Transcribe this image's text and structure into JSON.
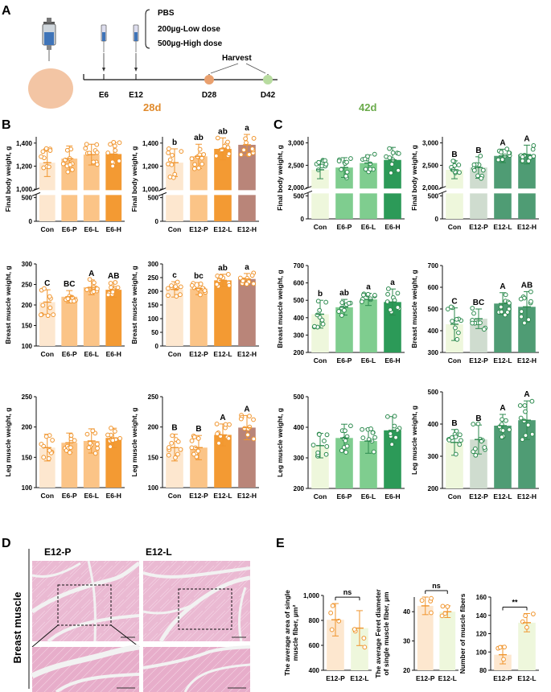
{
  "panel_labels": {
    "A": "A",
    "B": "B",
    "C": "C",
    "D": "D",
    "E": "E"
  },
  "timeline": {
    "treatments": [
      "PBS",
      "200µg-Low dose",
      "500µg-High dose"
    ],
    "ticks": [
      "E6",
      "E12",
      "D28",
      "D42"
    ],
    "harvest_label": "Harvest",
    "day28_label": "28d",
    "day42_label": "42d"
  },
  "histology": {
    "col1": "E12-P",
    "col2": "E12-L",
    "row_label": "Breast muscle"
  },
  "colors": {
    "orange_light": "#fde7cf",
    "orange_mid": "#fbc487",
    "orange_dark": "#f39a33",
    "brown": "#b98579",
    "green_pale": "#eef7dc",
    "green_mid": "#7fcd8f",
    "green_dark": "#2c9a58",
    "gray_green": "#cfdccf",
    "teal_green": "#4f9c74"
  },
  "chart_data": [
    {
      "id": "B1",
      "type": "bar",
      "ylabel": "Final body weight, g",
      "categories": [
        "Con",
        "E6-P",
        "E6-L",
        "E6-H"
      ],
      "values": [
        1230,
        1265,
        1300,
        1305
      ],
      "errors": [
        120,
        110,
        90,
        100
      ],
      "letters": [
        "",
        "",
        "",
        ""
      ],
      "ticks": [
        "1,400",
        "1,200",
        "1,000",
        "500",
        "0"
      ],
      "break": true,
      "palette": "orange"
    },
    {
      "id": "B2",
      "type": "bar",
      "ylabel": "Final body weight, g",
      "categories": [
        "Con",
        "E12-P",
        "E12-L",
        "E12-H"
      ],
      "values": [
        1230,
        1285,
        1350,
        1385
      ],
      "errors": [
        120,
        105,
        95,
        90
      ],
      "letters": [
        "b",
        "ab",
        "ab",
        "a"
      ],
      "ticks": [
        "1,400",
        "1,200",
        "1,000",
        "500",
        "0"
      ],
      "break": true,
      "palette": "orange2"
    },
    {
      "id": "C1",
      "type": "bar",
      "ylabel": "Final body weight, g",
      "categories": [
        "Con",
        "E6-P",
        "E6-L",
        "E6-H"
      ],
      "values": [
        2400,
        2450,
        2550,
        2620
      ],
      "errors": [
        200,
        220,
        180,
        280
      ],
      "letters": [
        "",
        "",
        "",
        ""
      ],
      "ticks": [
        "3,000",
        "2,500",
        "2,000",
        "500",
        "0"
      ],
      "break": true,
      "palette": "green"
    },
    {
      "id": "C2",
      "type": "bar",
      "ylabel": "Final body weight, g",
      "categories": [
        "Con",
        "E12-P",
        "E12-L",
        "E12-H"
      ],
      "values": [
        2400,
        2450,
        2710,
        2740
      ],
      "errors": [
        200,
        240,
        150,
        210
      ],
      "letters": [
        "B",
        "B",
        "A",
        "A"
      ],
      "ticks": [
        "3,000",
        "2,500",
        "2,000",
        "500",
        "0"
      ],
      "break": true,
      "palette": "green2"
    },
    {
      "id": "B3",
      "type": "bar",
      "ylabel": "Breast muscle weight, g",
      "categories": [
        "Con",
        "E6-P",
        "E6-L",
        "E6-H"
      ],
      "values": [
        207,
        220,
        243,
        237
      ],
      "errors": [
        30,
        15,
        18,
        18
      ],
      "letters": [
        "C",
        "BC",
        "A",
        "AB"
      ],
      "ylim": [
        100,
        300
      ],
      "ticks": [
        "300",
        "250",
        "200",
        "150",
        "100"
      ],
      "palette": "orange"
    },
    {
      "id": "B4",
      "type": "bar",
      "ylabel": "Breast muscle weight, g",
      "categories": [
        "Con",
        "E12-P",
        "E12-L",
        "E12-H"
      ],
      "values": [
        207,
        210,
        240,
        245
      ],
      "errors": [
        28,
        22,
        22,
        20
      ],
      "letters": [
        "c",
        "bc",
        "ab",
        "a"
      ],
      "ylim": [
        0,
        300
      ],
      "ticks": [
        "300",
        "250",
        "200",
        "150",
        "100",
        "50",
        "0"
      ],
      "palette": "orange2"
    },
    {
      "id": "C3",
      "type": "bar",
      "ylabel": "Breast muscle weight, g",
      "categories": [
        "Con",
        "E6-P",
        "E6-L",
        "E6-H"
      ],
      "values": [
        420,
        460,
        505,
        490
      ],
      "errors": [
        80,
        45,
        35,
        75
      ],
      "letters": [
        "b",
        "ab",
        "a",
        "a"
      ],
      "ylim": [
        200,
        700
      ],
      "ticks": [
        "700",
        "600",
        "500",
        "400",
        "300",
        "200"
      ],
      "palette": "green"
    },
    {
      "id": "C4",
      "type": "bar",
      "ylabel": "Breast muscle weight, g",
      "categories": [
        "Con",
        "E12-P",
        "E12-L",
        "E12-H"
      ],
      "values": [
        430,
        455,
        525,
        510
      ],
      "errors": [
        75,
        45,
        50,
        70
      ],
      "letters": [
        "C",
        "BC",
        "A",
        "AB"
      ],
      "ylim": [
        300,
        700
      ],
      "ticks": [
        "700",
        "600",
        "500",
        "400",
        "300"
      ],
      "palette": "green2"
    },
    {
      "id": "B5",
      "type": "bar",
      "ylabel": "Leg muscle weight, g",
      "categories": [
        "Con",
        "E6-P",
        "E6-L",
        "E6-H"
      ],
      "values": [
        166,
        174,
        177,
        182
      ],
      "errors": [
        22,
        16,
        20,
        16
      ],
      "letters": [
        "",
        "",
        "",
        ""
      ],
      "ylim": [
        100,
        250
      ],
      "ticks": [
        "250",
        "200",
        "150",
        "100"
      ],
      "palette": "orange"
    },
    {
      "id": "B6",
      "type": "bar",
      "ylabel": "Leg muscle weight, g",
      "categories": [
        "Con",
        "E12-P",
        "E12-L",
        "E12-H"
      ],
      "values": [
        166,
        166,
        187,
        199
      ],
      "errors": [
        22,
        20,
        18,
        20
      ],
      "letters": [
        "B",
        "B",
        "A",
        "A"
      ],
      "ylim": [
        100,
        250
      ],
      "ticks": [
        "250",
        "200",
        "150",
        "100"
      ],
      "palette": "orange2"
    },
    {
      "id": "C5",
      "type": "bar",
      "ylabel": "Leg muscle weight, g",
      "categories": [
        "Con",
        "E6-P",
        "E6-L",
        "E6-H"
      ],
      "values": [
        340,
        365,
        355,
        390
      ],
      "errors": [
        40,
        45,
        40,
        45
      ],
      "letters": [
        "",
        "",
        "",
        ""
      ],
      "ylim": [
        200,
        500
      ],
      "ticks": [
        "500",
        "400",
        "300",
        "200"
      ],
      "palette": "green"
    },
    {
      "id": "C6",
      "type": "bar",
      "ylabel": "Leg muscle weight, g",
      "categories": [
        "Con",
        "E12-P",
        "E12-L",
        "E12-H"
      ],
      "values": [
        343,
        352,
        395,
        412
      ],
      "errors": [
        40,
        45,
        35,
        60
      ],
      "letters": [
        "B",
        "B",
        "A",
        "A"
      ],
      "ylim": [
        200,
        500
      ],
      "ticks": [
        "500",
        "400",
        "300",
        "200"
      ],
      "palette": "green2"
    },
    {
      "id": "E1",
      "type": "bar",
      "ylabel": "The average area of single muscle fiber, µm²",
      "categories": [
        "E12-P",
        "E12-L"
      ],
      "values": [
        805,
        738
      ],
      "errors": [
        130,
        140
      ],
      "sig": "ns",
      "ylim": [
        400,
        1000
      ],
      "ticks": [
        "1,000",
        "800",
        "600",
        "400"
      ],
      "palette": "pair"
    },
    {
      "id": "E2",
      "type": "bar",
      "ylabel": "The average Feret diameter of single muscle fiber, µm",
      "categories": [
        "E12-P",
        "E12-L"
      ],
      "values": [
        42,
        40
      ],
      "errors": [
        3,
        2
      ],
      "sig": "ns",
      "ylim": [
        20,
        45
      ],
      "ticks": [
        "40",
        "30",
        "20"
      ],
      "palette": "pair"
    },
    {
      "id": "E3",
      "type": "bar",
      "ylabel": "Number of muscle fibers",
      "categories": [
        "E12-P",
        "E12-L"
      ],
      "values": [
        97,
        132
      ],
      "errors": [
        10,
        10
      ],
      "sig": "**",
      "ylim": [
        80,
        160
      ],
      "ticks": [
        "160",
        "140",
        "120",
        "100",
        "80"
      ],
      "palette": "pair"
    }
  ]
}
